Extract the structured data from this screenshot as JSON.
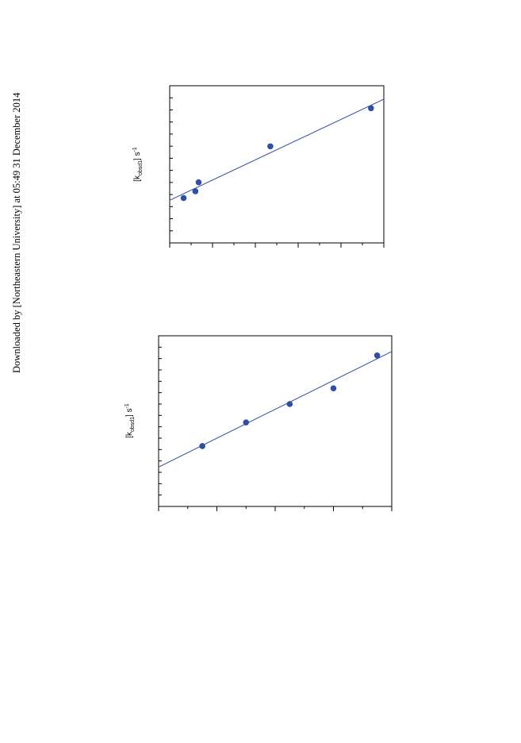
{
  "watermark": "Downloaded by [Northeastern University] at 05:49 31 December 2014",
  "chart_data": [
    {
      "type": "scatter",
      "title": "",
      "xlabel": "",
      "ylabel": {
        "prefix": "[k",
        "sub": "obsd1",
        "suffix": "] s",
        "sup": "-1"
      },
      "xlim": [
        0,
        10
      ],
      "ylim": [
        0,
        7
      ],
      "grid": false,
      "series": [
        {
          "points": [
            {
              "x": 0.65,
              "y": 2.0
            },
            {
              "x": 1.2,
              "y": 2.3
            },
            {
              "x": 1.35,
              "y": 2.7
            },
            {
              "x": 4.7,
              "y": 4.3
            },
            {
              "x": 9.4,
              "y": 6.0
            }
          ],
          "fit": [
            {
              "x": 0,
              "y": 1.9
            },
            {
              "x": 10,
              "y": 6.4
            }
          ],
          "color": "#2f4fa2"
        }
      ]
    },
    {
      "type": "scatter",
      "title": "",
      "xlabel": "",
      "ylabel": {
        "prefix": "[k",
        "sub": "obsd1",
        "suffix": "] s",
        "sup": "-1"
      },
      "xlim": [
        0,
        8
      ],
      "ylim": [
        0,
        13
      ],
      "grid": false,
      "series": [
        {
          "points": [
            {
              "x": 1.5,
              "y": 4.6
            },
            {
              "x": 3.0,
              "y": 6.4
            },
            {
              "x": 4.5,
              "y": 7.8
            },
            {
              "x": 6.0,
              "y": 9.0
            },
            {
              "x": 7.5,
              "y": 11.5
            }
          ],
          "fit": [
            {
              "x": 0,
              "y": 3.0
            },
            {
              "x": 8,
              "y": 11.8
            }
          ],
          "color": "#2f4fa2"
        }
      ]
    }
  ]
}
